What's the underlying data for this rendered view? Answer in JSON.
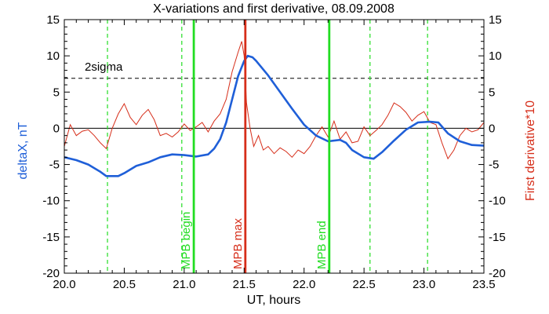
{
  "chart_data": {
    "type": "line",
    "title": "X-variations and first derivative, 08.09.2008",
    "xlabel": "UT, hours",
    "ylabel": "deltaX, nT",
    "ylabel_right": "First derivative*10",
    "xlim": [
      20.0,
      23.5
    ],
    "ylim": [
      -20,
      15
    ],
    "ylim_right": [
      -20,
      15
    ],
    "x_ticks": [
      "20.0",
      "20.5",
      "21.0",
      "21.5",
      "22.0",
      "22.5",
      "23.0",
      "23.5"
    ],
    "y_ticks": [
      "15",
      "10",
      "5",
      "0",
      "-5",
      "-10",
      "-15",
      "-20"
    ],
    "y_ticks_right": [
      "15",
      "10",
      "5",
      "0",
      "-5",
      "-10",
      "-15",
      "-20"
    ],
    "colors": {
      "deltaX": "#1f5fd8",
      "derivative": "#d62e1a",
      "mpb_lines": "#22dd22",
      "mpb_max_line": "#d62e1a",
      "ylabel_left": "#1f5fd8",
      "ylabel_right": "#d62e1a"
    },
    "series": [
      {
        "role": "deltaX",
        "axis": "left",
        "points": [
          [
            20.0,
            -4.0
          ],
          [
            20.1,
            -4.4
          ],
          [
            20.2,
            -5.0
          ],
          [
            20.3,
            -6.0
          ],
          [
            20.35,
            -6.6
          ],
          [
            20.45,
            -6.6
          ],
          [
            20.5,
            -6.2
          ],
          [
            20.6,
            -5.2
          ],
          [
            20.7,
            -4.7
          ],
          [
            20.8,
            -4.0
          ],
          [
            20.9,
            -3.6
          ],
          [
            21.0,
            -3.7
          ],
          [
            21.1,
            -3.9
          ],
          [
            21.2,
            -3.6
          ],
          [
            21.25,
            -2.8
          ],
          [
            21.3,
            -1.5
          ],
          [
            21.35,
            0.8
          ],
          [
            21.4,
            4.0
          ],
          [
            21.45,
            7.2
          ],
          [
            21.5,
            9.3
          ],
          [
            21.53,
            10.0
          ],
          [
            21.57,
            9.8
          ],
          [
            21.6,
            9.3
          ],
          [
            21.7,
            7.3
          ],
          [
            21.8,
            5.0
          ],
          [
            21.9,
            2.7
          ],
          [
            22.0,
            0.5
          ],
          [
            22.1,
            -1.0
          ],
          [
            22.2,
            -1.8
          ],
          [
            22.3,
            -1.6
          ],
          [
            22.35,
            -2.0
          ],
          [
            22.4,
            -3.0
          ],
          [
            22.5,
            -4.0
          ],
          [
            22.58,
            -4.2
          ],
          [
            22.65,
            -3.3
          ],
          [
            22.75,
            -1.7
          ],
          [
            22.85,
            -0.2
          ],
          [
            22.95,
            0.8
          ],
          [
            23.05,
            0.9
          ],
          [
            23.12,
            0.8
          ],
          [
            23.2,
            -0.7
          ],
          [
            23.3,
            -1.8
          ],
          [
            23.4,
            -2.3
          ],
          [
            23.5,
            -2.4
          ]
        ]
      },
      {
        "role": "derivative",
        "axis": "right",
        "points": [
          [
            20.0,
            -2.5
          ],
          [
            20.05,
            0.5
          ],
          [
            20.1,
            -1.0
          ],
          [
            20.15,
            -0.4
          ],
          [
            20.2,
            -0.2
          ],
          [
            20.25,
            -1.0
          ],
          [
            20.3,
            -2.0
          ],
          [
            20.35,
            -2.8
          ],
          [
            20.4,
            0.0
          ],
          [
            20.45,
            2.0
          ],
          [
            20.5,
            3.4
          ],
          [
            20.55,
            1.5
          ],
          [
            20.6,
            0.5
          ],
          [
            20.65,
            1.8
          ],
          [
            20.7,
            2.6
          ],
          [
            20.75,
            1.2
          ],
          [
            20.8,
            -1.0
          ],
          [
            20.85,
            -0.7
          ],
          [
            20.9,
            -1.2
          ],
          [
            20.95,
            -0.5
          ],
          [
            21.0,
            0.6
          ],
          [
            21.05,
            -0.3
          ],
          [
            21.1,
            0.2
          ],
          [
            21.15,
            0.8
          ],
          [
            21.2,
            -0.5
          ],
          [
            21.25,
            1.0
          ],
          [
            21.3,
            2.0
          ],
          [
            21.35,
            4.0
          ],
          [
            21.4,
            7.8
          ],
          [
            21.45,
            10.5
          ],
          [
            21.48,
            12.0
          ],
          [
            21.5,
            10.0
          ],
          [
            21.52,
            3.5
          ],
          [
            21.55,
            0.0
          ],
          [
            21.58,
            -2.5
          ],
          [
            21.62,
            -1.0
          ],
          [
            21.66,
            -3.0
          ],
          [
            21.7,
            -2.5
          ],
          [
            21.75,
            -3.5
          ],
          [
            21.8,
            -2.7
          ],
          [
            21.85,
            -3.2
          ],
          [
            21.9,
            -4.0
          ],
          [
            21.95,
            -3.0
          ],
          [
            22.0,
            -3.5
          ],
          [
            22.05,
            -2.5
          ],
          [
            22.1,
            -1.0
          ],
          [
            22.15,
            0.2
          ],
          [
            22.2,
            -1.2
          ],
          [
            22.25,
            1.0
          ],
          [
            22.3,
            -1.5
          ],
          [
            22.35,
            -0.5
          ],
          [
            22.4,
            -2.0
          ],
          [
            22.45,
            -1.8
          ],
          [
            22.5,
            0.2
          ],
          [
            22.55,
            -1.0
          ],
          [
            22.6,
            -0.3
          ],
          [
            22.65,
            0.5
          ],
          [
            22.7,
            1.8
          ],
          [
            22.75,
            3.5
          ],
          [
            22.8,
            3.0
          ],
          [
            22.85,
            2.2
          ],
          [
            22.9,
            1.0
          ],
          [
            22.95,
            1.8
          ],
          [
            23.0,
            2.3
          ],
          [
            23.05,
            0.8
          ],
          [
            23.1,
            0.5
          ],
          [
            23.15,
            -2.0
          ],
          [
            23.2,
            -4.2
          ],
          [
            23.25,
            -3.0
          ],
          [
            23.3,
            -1.0
          ],
          [
            23.35,
            0.0
          ],
          [
            23.4,
            -0.5
          ],
          [
            23.45,
            -0.2
          ],
          [
            23.5,
            0.8
          ]
        ]
      }
    ],
    "threshold": {
      "label": "2sigma",
      "y": 6.9
    },
    "zero_line": 0,
    "vlines_dashed": [
      20.36,
      20.98,
      22.55,
      23.03
    ],
    "vlines_labeled": [
      {
        "x": 21.08,
        "label": "MPB begin",
        "role": "mpb"
      },
      {
        "x": 21.51,
        "label": "MPB max",
        "role": "max"
      },
      {
        "x": 22.21,
        "label": "MPB end",
        "role": "mpb"
      }
    ],
    "grid": false
  }
}
